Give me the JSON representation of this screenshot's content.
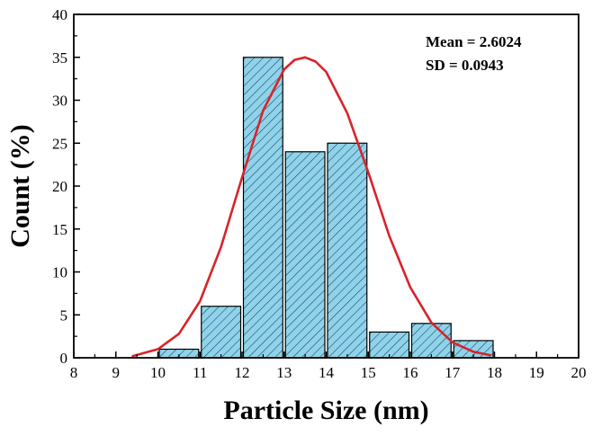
{
  "chart_data": {
    "type": "bar",
    "xlabel": "Particle Size (nm)",
    "ylabel": "Count (%)",
    "xlim": [
      8,
      20
    ],
    "ylim": [
      0,
      40
    ],
    "xticks": [
      "8",
      "9",
      "10",
      "11",
      "12",
      "13",
      "14",
      "15",
      "16",
      "17",
      "18",
      "19",
      "20"
    ],
    "yticks": [
      "0",
      "5",
      "10",
      "15",
      "20",
      "25",
      "30",
      "35",
      "40"
    ],
    "bins": [
      {
        "x0": 10,
        "x1": 11,
        "value": 1
      },
      {
        "x0": 11,
        "x1": 12,
        "value": 6
      },
      {
        "x0": 12,
        "x1": 13,
        "value": 35
      },
      {
        "x0": 13,
        "x1": 14,
        "value": 24
      },
      {
        "x0": 14,
        "x1": 15,
        "value": 25
      },
      {
        "x0": 15,
        "x1": 16,
        "value": 3
      },
      {
        "x0": 16,
        "x1": 17,
        "value": 4
      },
      {
        "x0": 17,
        "x1": 18,
        "value": 2
      }
    ],
    "fit_curve": {
      "type": "gaussian",
      "color": "#d9232a",
      "x": [
        9.4,
        10.0,
        10.5,
        11.0,
        11.5,
        12.0,
        12.5,
        13.0,
        13.25,
        13.5,
        13.75,
        14.0,
        14.5,
        15.0,
        15.5,
        16.0,
        16.5,
        17.0,
        17.5,
        17.9
      ],
      "y": [
        0.2,
        1.0,
        2.8,
        6.6,
        12.9,
        21.0,
        28.8,
        33.6,
        34.7,
        35.0,
        34.5,
        33.3,
        28.5,
        21.6,
        14.2,
        8.2,
        4.1,
        1.8,
        0.7,
        0.3
      ]
    },
    "bar_fill": "#8fd3ea",
    "hatch_color": "#1a3b55",
    "grid": false,
    "annotations": [
      "Mean = 2.6024",
      "SD = 0.0943"
    ]
  }
}
